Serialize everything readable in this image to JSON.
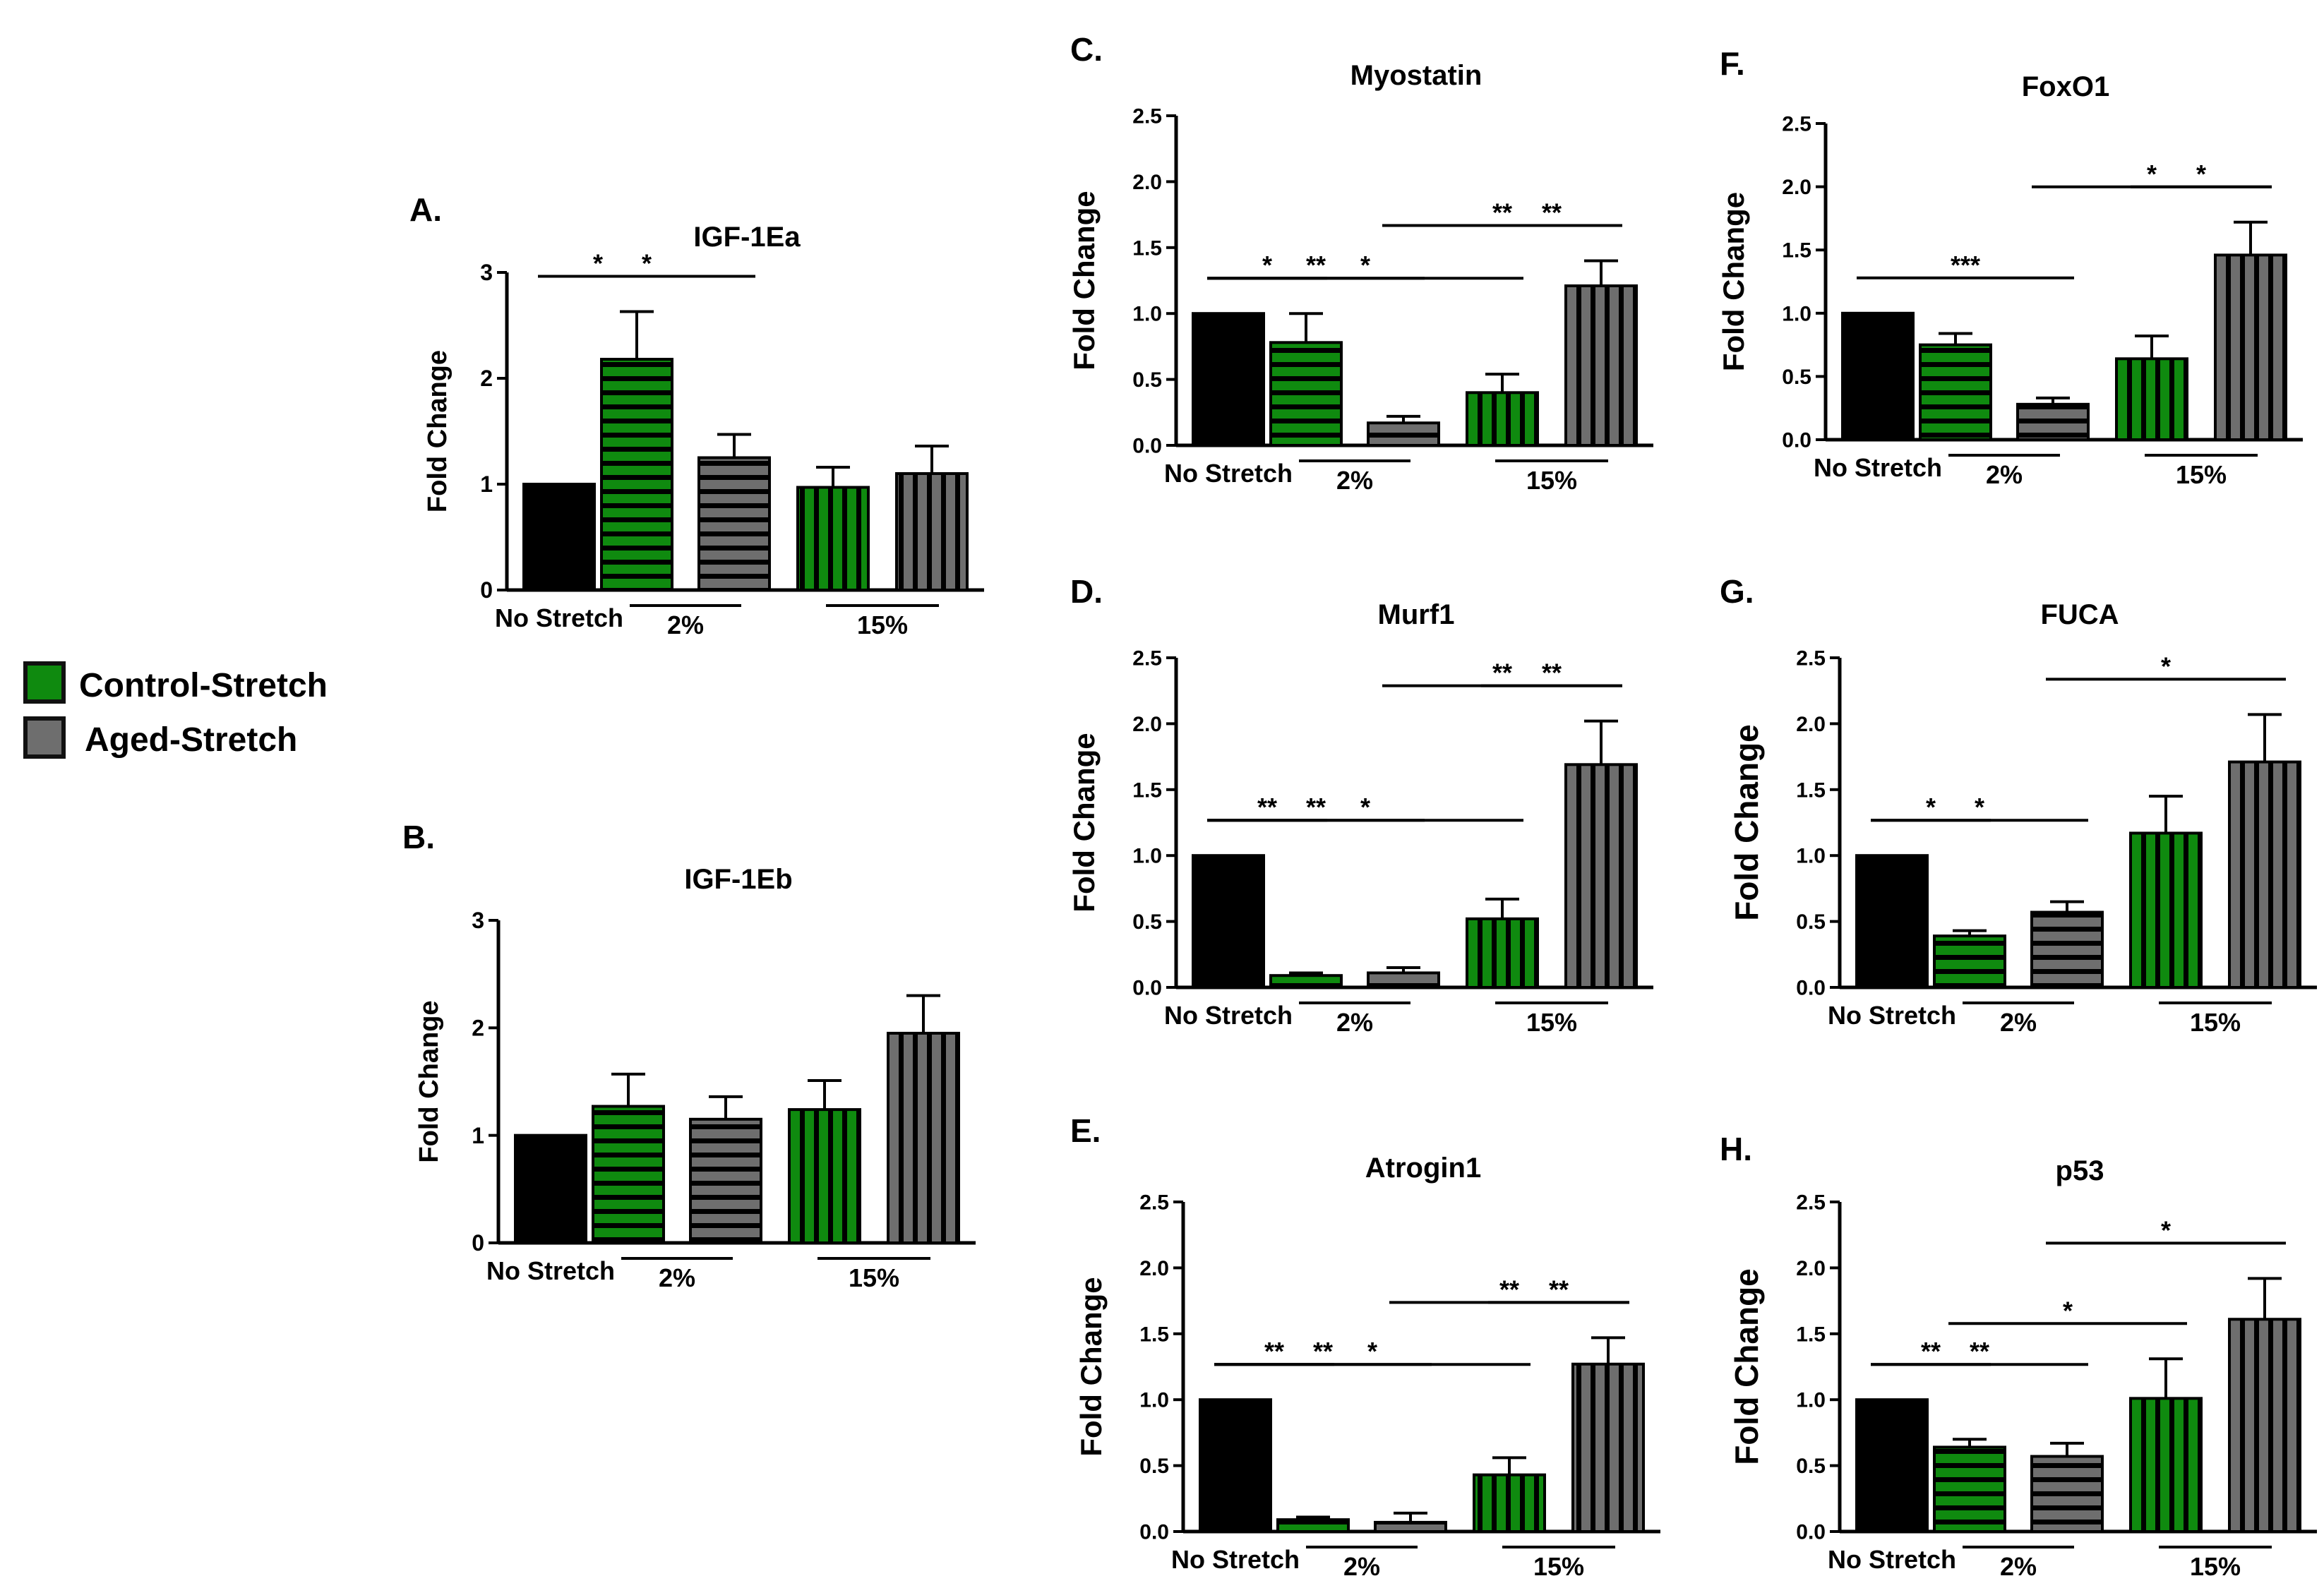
{
  "legend": {
    "items": [
      {
        "label": "Control-Stretch",
        "color": "#0f8a0f",
        "pattern": "green-stripes"
      },
      {
        "label": "Aged-Stretch",
        "color": "#6e6e6e",
        "pattern": "gray-stripes"
      }
    ]
  },
  "colors": {
    "no_stretch": "#000000",
    "control": "#0f8a0f",
    "aged": "#6e6e6e"
  },
  "chart_data": [
    {
      "id": "A",
      "panel_label": "A.",
      "type": "bar",
      "title": "IGF-1Ea",
      "ylabel": "Fold Change",
      "ylim": [
        0,
        3
      ],
      "yticks": [
        "0",
        "1",
        "2",
        "3"
      ],
      "groups": [
        "No Stretch",
        "2%",
        "15%"
      ],
      "bars": [
        {
          "group": "No Stretch",
          "series": "No Stretch",
          "value": 1.0,
          "err": 0
        },
        {
          "group": "2%",
          "series": "Control-Stretch",
          "value": 2.18,
          "err": 0.45
        },
        {
          "group": "2%",
          "series": "Aged-Stretch",
          "value": 1.25,
          "err": 0.22
        },
        {
          "group": "15%",
          "series": "Control-Stretch",
          "value": 0.97,
          "err": 0.19
        },
        {
          "group": "15%",
          "series": "Aged-Stretch",
          "value": 1.1,
          "err": 0.26
        }
      ],
      "significance": [
        {
          "from": 0,
          "to": 1,
          "label": "*"
        },
        {
          "from": 0,
          "to": 2,
          "label": "*"
        }
      ]
    },
    {
      "id": "B",
      "panel_label": "B.",
      "type": "bar",
      "title": "IGF-1Eb",
      "ylabel": "Fold Change",
      "ylim": [
        0,
        3
      ],
      "yticks": [
        "0",
        "1",
        "2",
        "3"
      ],
      "groups": [
        "No Stretch",
        "2%",
        "15%"
      ],
      "bars": [
        {
          "group": "No Stretch",
          "series": "No Stretch",
          "value": 1.0,
          "err": 0
        },
        {
          "group": "2%",
          "series": "Control-Stretch",
          "value": 1.27,
          "err": 0.3
        },
        {
          "group": "2%",
          "series": "Aged-Stretch",
          "value": 1.15,
          "err": 0.21
        },
        {
          "group": "15%",
          "series": "Control-Stretch",
          "value": 1.24,
          "err": 0.27
        },
        {
          "group": "15%",
          "series": "Aged-Stretch",
          "value": 1.95,
          "err": 0.35
        }
      ],
      "significance": []
    },
    {
      "id": "C",
      "panel_label": "C.",
      "type": "bar",
      "title": "Myostatin",
      "ylabel": "Fold Change",
      "ylim": [
        0,
        2.5
      ],
      "yticks": [
        "0.0",
        "0.5",
        "1.0",
        "1.5",
        "2.0",
        "2.5"
      ],
      "groups": [
        "No Stretch",
        "2%",
        "15%"
      ],
      "bars": [
        {
          "group": "No Stretch",
          "series": "No Stretch",
          "value": 1.0,
          "err": 0
        },
        {
          "group": "2%",
          "series": "Control-Stretch",
          "value": 0.78,
          "err": 0.22
        },
        {
          "group": "2%",
          "series": "Aged-Stretch",
          "value": 0.17,
          "err": 0.05
        },
        {
          "group": "15%",
          "series": "Control-Stretch",
          "value": 0.4,
          "err": 0.14
        },
        {
          "group": "15%",
          "series": "Aged-Stretch",
          "value": 1.21,
          "err": 0.19
        }
      ],
      "significance": [
        {
          "from": 0,
          "to": 1,
          "label": "*"
        },
        {
          "from": 0,
          "to": 2,
          "label": "**"
        },
        {
          "from": 0,
          "to": 3,
          "label": "*"
        },
        {
          "from": 2,
          "to": 4,
          "label": "**"
        },
        {
          "from": 3,
          "to": 4,
          "label": "**"
        }
      ]
    },
    {
      "id": "D",
      "panel_label": "D.",
      "type": "bar",
      "title": "Murf1",
      "ylabel": "Fold Change",
      "ylim": [
        0,
        2.5
      ],
      "yticks": [
        "0.0",
        "0.5",
        "1.0",
        "1.5",
        "2.0",
        "2.5"
      ],
      "groups": [
        "No Stretch",
        "2%",
        "15%"
      ],
      "bars": [
        {
          "group": "No Stretch",
          "series": "No Stretch",
          "value": 1.0,
          "err": 0
        },
        {
          "group": "2%",
          "series": "Control-Stretch",
          "value": 0.09,
          "err": 0.02
        },
        {
          "group": "2%",
          "series": "Aged-Stretch",
          "value": 0.11,
          "err": 0.04
        },
        {
          "group": "15%",
          "series": "Control-Stretch",
          "value": 0.52,
          "err": 0.15
        },
        {
          "group": "15%",
          "series": "Aged-Stretch",
          "value": 1.69,
          "err": 0.33
        }
      ],
      "significance": [
        {
          "from": 0,
          "to": 1,
          "label": "**"
        },
        {
          "from": 0,
          "to": 2,
          "label": "**"
        },
        {
          "from": 0,
          "to": 3,
          "label": "*"
        },
        {
          "from": 2,
          "to": 4,
          "label": "**"
        },
        {
          "from": 3,
          "to": 4,
          "label": "**"
        }
      ]
    },
    {
      "id": "E",
      "panel_label": "E.",
      "type": "bar",
      "title": "Atrogin1",
      "ylabel": "Fold Change",
      "ylim": [
        0,
        2.5
      ],
      "yticks": [
        "0.0",
        "0.5",
        "1.0",
        "1.5",
        "2.0",
        "2.5"
      ],
      "groups": [
        "No Stretch",
        "2%",
        "15%"
      ],
      "bars": [
        {
          "group": "No Stretch",
          "series": "No Stretch",
          "value": 1.0,
          "err": 0
        },
        {
          "group": "2%",
          "series": "Control-Stretch",
          "value": 0.09,
          "err": 0.02
        },
        {
          "group": "2%",
          "series": "Aged-Stretch",
          "value": 0.07,
          "err": 0.07
        },
        {
          "group": "15%",
          "series": "Control-Stretch",
          "value": 0.43,
          "err": 0.13
        },
        {
          "group": "15%",
          "series": "Aged-Stretch",
          "value": 1.27,
          "err": 0.2
        }
      ],
      "significance": [
        {
          "from": 0,
          "to": 1,
          "label": "**"
        },
        {
          "from": 0,
          "to": 2,
          "label": "**"
        },
        {
          "from": 0,
          "to": 3,
          "label": "*"
        },
        {
          "from": 2,
          "to": 4,
          "label": "**"
        },
        {
          "from": 3,
          "to": 4,
          "label": "**"
        }
      ]
    },
    {
      "id": "F",
      "panel_label": "F.",
      "type": "bar",
      "title": "FoxO1",
      "ylabel": "Fold Change",
      "ylim": [
        0,
        2.5
      ],
      "yticks": [
        "0.0",
        "0.5",
        "1.0",
        "1.5",
        "2.0",
        "2.5"
      ],
      "groups": [
        "No Stretch",
        "2%",
        "15%"
      ],
      "bars": [
        {
          "group": "No Stretch",
          "series": "No Stretch",
          "value": 1.0,
          "err": 0
        },
        {
          "group": "2%",
          "series": "Control-Stretch",
          "value": 0.75,
          "err": 0.09
        },
        {
          "group": "2%",
          "series": "Aged-Stretch",
          "value": 0.28,
          "err": 0.05
        },
        {
          "group": "15%",
          "series": "Control-Stretch",
          "value": 0.64,
          "err": 0.18
        },
        {
          "group": "15%",
          "series": "Aged-Stretch",
          "value": 1.46,
          "err": 0.26
        }
      ],
      "significance": [
        {
          "from": 0,
          "to": 2,
          "label": "***"
        },
        {
          "from": 2,
          "to": 4,
          "label": "*"
        },
        {
          "from": 3,
          "to": 4,
          "label": "*"
        }
      ]
    },
    {
      "id": "G",
      "panel_label": "G.",
      "type": "bar",
      "title": "FUCA",
      "ylabel": "Fold Change",
      "ylim": [
        0,
        2.5
      ],
      "yticks": [
        "0.0",
        "0.5",
        "1.0",
        "1.5",
        "2.0",
        "2.5"
      ],
      "groups": [
        "No Stretch",
        "2%",
        "15%"
      ],
      "bars": [
        {
          "group": "No Stretch",
          "series": "No Stretch",
          "value": 1.0,
          "err": 0
        },
        {
          "group": "2%",
          "series": "Control-Stretch",
          "value": 0.39,
          "err": 0.04
        },
        {
          "group": "2%",
          "series": "Aged-Stretch",
          "value": 0.57,
          "err": 0.08
        },
        {
          "group": "15%",
          "series": "Control-Stretch",
          "value": 1.17,
          "err": 0.28
        },
        {
          "group": "15%",
          "series": "Aged-Stretch",
          "value": 1.71,
          "err": 0.36
        }
      ],
      "significance": [
        {
          "from": 0,
          "to": 1,
          "label": "*"
        },
        {
          "from": 0,
          "to": 2,
          "label": "*"
        },
        {
          "from": 2,
          "to": 4,
          "label": "*"
        }
      ]
    },
    {
      "id": "H",
      "panel_label": "H.",
      "type": "bar",
      "title": "p53",
      "ylabel": "Fold Change",
      "ylim": [
        0,
        2.5
      ],
      "yticks": [
        "0.0",
        "0.5",
        "1.0",
        "1.5",
        "2.0",
        "2.5"
      ],
      "groups": [
        "No Stretch",
        "2%",
        "15%"
      ],
      "bars": [
        {
          "group": "No Stretch",
          "series": "No Stretch",
          "value": 1.0,
          "err": 0
        },
        {
          "group": "2%",
          "series": "Control-Stretch",
          "value": 0.64,
          "err": 0.06
        },
        {
          "group": "2%",
          "series": "Aged-Stretch",
          "value": 0.57,
          "err": 0.1
        },
        {
          "group": "15%",
          "series": "Control-Stretch",
          "value": 1.01,
          "err": 0.3
        },
        {
          "group": "15%",
          "series": "Aged-Stretch",
          "value": 1.61,
          "err": 0.31
        }
      ],
      "significance": [
        {
          "from": 0,
          "to": 1,
          "label": "**"
        },
        {
          "from": 0,
          "to": 2,
          "label": "**"
        },
        {
          "from": 1,
          "to": 3,
          "label": "*"
        },
        {
          "from": 2,
          "to": 4,
          "label": "*"
        }
      ]
    }
  ]
}
